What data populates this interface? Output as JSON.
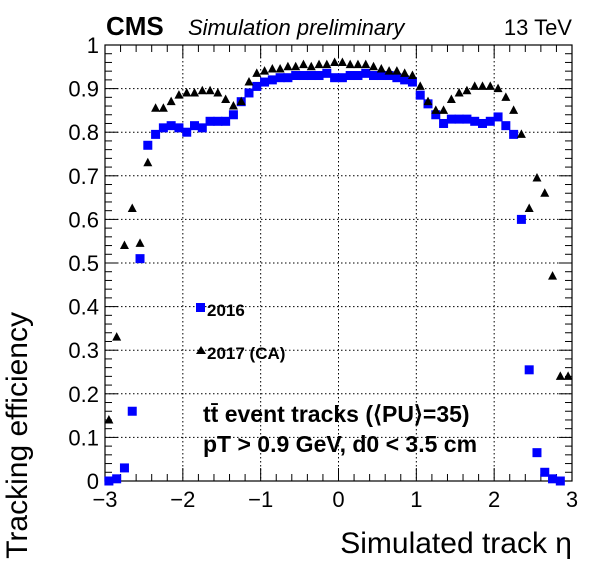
{
  "header": {
    "experiment": "CMS",
    "status": "Simulation preliminary",
    "energy": "13 TeV"
  },
  "chart_data": {
    "type": "scatter",
    "xlabel": "Simulated track η",
    "ylabel": "Tracking efficiency",
    "xlim": [
      -3,
      3
    ],
    "ylim": [
      0,
      1
    ],
    "xticks": [
      -3,
      -2,
      -1,
      0,
      1,
      2,
      3
    ],
    "xtick_labels": [
      "−3",
      "−2",
      "−1",
      "0",
      "1",
      "2",
      "3"
    ],
    "yticks": [
      0,
      0.1,
      0.2,
      0.3,
      0.4,
      0.5,
      0.6,
      0.7,
      0.8,
      0.9,
      1
    ],
    "ytick_labels": [
      "0",
      "0.1",
      "0.2",
      "0.3",
      "0.4",
      "0.5",
      "0.6",
      "0.7",
      "0.8",
      "0.9",
      "1"
    ],
    "grid": true,
    "legend_position": "middle-left",
    "annotations": [
      "tt̄ event tracks (⟨PU⟩=35)",
      "pT > 0.9 GeV,  d0 < 3.5 cm"
    ],
    "series": [
      {
        "name": "2016",
        "marker": "square",
        "color": "#0000ff",
        "x": [
          -2.95,
          -2.85,
          -2.75,
          -2.65,
          -2.55,
          -2.45,
          -2.35,
          -2.25,
          -2.15,
          -2.05,
          -1.95,
          -1.85,
          -1.75,
          -1.65,
          -1.55,
          -1.45,
          -1.35,
          -1.25,
          -1.15,
          -1.05,
          -0.95,
          -0.85,
          -0.75,
          -0.65,
          -0.55,
          -0.45,
          -0.35,
          -0.25,
          -0.15,
          -0.05,
          0.05,
          0.15,
          0.25,
          0.35,
          0.45,
          0.55,
          0.65,
          0.75,
          0.85,
          0.95,
          1.05,
          1.15,
          1.25,
          1.35,
          1.45,
          1.55,
          1.65,
          1.75,
          1.85,
          1.95,
          2.05,
          2.15,
          2.25,
          2.35,
          2.45,
          2.55,
          2.65,
          2.75,
          2.85
        ],
        "y": [
          0.0,
          0.005,
          0.03,
          0.16,
          0.51,
          0.77,
          0.795,
          0.81,
          0.815,
          0.81,
          0.8,
          0.815,
          0.81,
          0.825,
          0.825,
          0.825,
          0.84,
          0.87,
          0.89,
          0.905,
          0.915,
          0.92,
          0.925,
          0.925,
          0.93,
          0.93,
          0.93,
          0.93,
          0.935,
          0.925,
          0.925,
          0.93,
          0.93,
          0.935,
          0.93,
          0.93,
          0.93,
          0.925,
          0.92,
          0.915,
          0.885,
          0.865,
          0.84,
          0.82,
          0.83,
          0.83,
          0.83,
          0.825,
          0.82,
          0.825,
          0.835,
          0.815,
          0.795,
          0.6,
          0.255,
          0.065,
          0.02,
          0.005,
          0.0
        ]
      },
      {
        "name": "2017 (CA)",
        "marker": "triangle",
        "color": "#000000",
        "x": [
          -2.95,
          -2.85,
          -2.75,
          -2.65,
          -2.55,
          -2.45,
          -2.35,
          -2.25,
          -2.15,
          -2.05,
          -1.95,
          -1.85,
          -1.75,
          -1.65,
          -1.55,
          -1.45,
          -1.35,
          -1.25,
          -1.15,
          -1.05,
          -0.95,
          -0.85,
          -0.75,
          -0.65,
          -0.55,
          -0.45,
          -0.35,
          -0.25,
          -0.15,
          -0.05,
          0.05,
          0.15,
          0.25,
          0.35,
          0.45,
          0.55,
          0.65,
          0.75,
          0.85,
          0.95,
          1.05,
          1.15,
          1.25,
          1.35,
          1.45,
          1.55,
          1.65,
          1.75,
          1.85,
          1.95,
          2.05,
          2.15,
          2.25,
          2.35,
          2.45,
          2.55,
          2.65,
          2.75,
          2.85,
          2.95
        ],
        "y": [
          0.14,
          0.33,
          0.54,
          0.625,
          0.545,
          0.73,
          0.855,
          0.855,
          0.87,
          0.885,
          0.89,
          0.89,
          0.895,
          0.895,
          0.89,
          0.875,
          0.86,
          0.87,
          0.915,
          0.935,
          0.94,
          0.945,
          0.945,
          0.95,
          0.95,
          0.955,
          0.95,
          0.955,
          0.955,
          0.96,
          0.96,
          0.955,
          0.955,
          0.955,
          0.95,
          0.945,
          0.94,
          0.94,
          0.935,
          0.93,
          0.905,
          0.87,
          0.85,
          0.85,
          0.875,
          0.89,
          0.895,
          0.905,
          0.905,
          0.905,
          0.9,
          0.88,
          0.85,
          0.795,
          0.625,
          0.695,
          0.66,
          0.47,
          0.24,
          0.24
        ]
      }
    ]
  }
}
